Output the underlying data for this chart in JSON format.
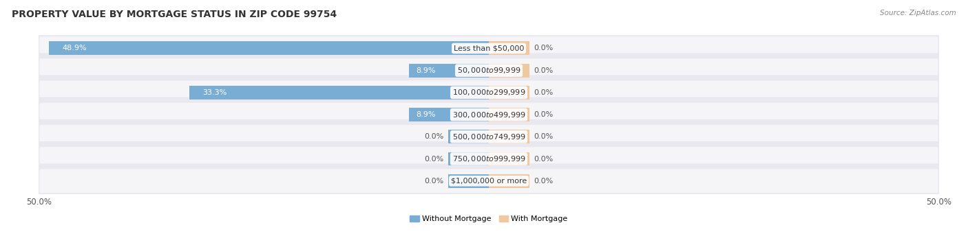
{
  "title": "PROPERTY VALUE BY MORTGAGE STATUS IN ZIP CODE 99754",
  "source": "Source: ZipAtlas.com",
  "categories": [
    "Less than $50,000",
    "$50,000 to $99,999",
    "$100,000 to $299,999",
    "$300,000 to $499,999",
    "$500,000 to $749,999",
    "$750,000 to $999,999",
    "$1,000,000 or more"
  ],
  "without_mortgage": [
    48.9,
    8.9,
    33.3,
    8.9,
    0.0,
    0.0,
    0.0
  ],
  "with_mortgage": [
    0.0,
    0.0,
    0.0,
    0.0,
    0.0,
    0.0,
    0.0
  ],
  "without_mortgage_color": "#7aadd4",
  "with_mortgage_color": "#f0c8a0",
  "min_bar_width": 4.5,
  "bar_height": 0.62,
  "xlim": 50.0,
  "bg_color": "#ffffff",
  "row_bg_color": "#eeeeee",
  "row_bg_alt": "#e8e8ec",
  "title_fontsize": 10,
  "label_fontsize": 8,
  "cat_fontsize": 8,
  "tick_fontsize": 8.5,
  "source_fontsize": 7.5,
  "legend_fontsize": 8
}
